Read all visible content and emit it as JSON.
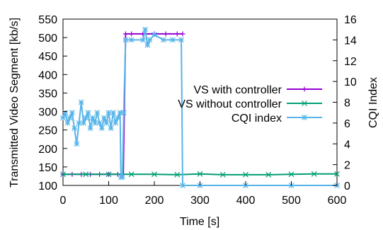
{
  "chart_data": {
    "type": "line",
    "xlabel": "Time [s]",
    "ylabel": "Transmitted Video Segment [kb/s]",
    "y2label": "CQI Index",
    "xlim": [
      0,
      600
    ],
    "ylim": [
      100,
      550
    ],
    "y2lim": [
      0,
      16
    ],
    "xticks": [
      "0",
      "100",
      "200",
      "300",
      "400",
      "500",
      "600"
    ],
    "yticks": [
      "100",
      "150",
      "200",
      "250",
      "300",
      "350",
      "400",
      "450",
      "500",
      "550"
    ],
    "y2ticks": [
      "0",
      "2",
      "4",
      "6",
      "8",
      "10",
      "12",
      "14",
      "16"
    ],
    "grid": false,
    "legend_position": "right",
    "series": [
      {
        "name": "VS with controller",
        "color": "#9400d3",
        "marker": "plus",
        "axis": "left",
        "points": [
          [
            0,
            130
          ],
          [
            20,
            130
          ],
          [
            40,
            130
          ],
          [
            60,
            130
          ],
          [
            80,
            130
          ],
          [
            100,
            130
          ],
          [
            120,
            130
          ],
          [
            127,
            130
          ],
          [
            132,
            130
          ],
          [
            137,
            510
          ],
          [
            150,
            510
          ],
          [
            175,
            510
          ],
          [
            200,
            510
          ],
          [
            225,
            510
          ],
          [
            250,
            510
          ],
          [
            262,
            510
          ]
        ]
      },
      {
        "name": "VS without controller",
        "color": "#009e73",
        "marker": "x",
        "axis": "left",
        "points": [
          [
            0,
            130
          ],
          [
            50,
            130
          ],
          [
            100,
            130
          ],
          [
            150,
            130
          ],
          [
            200,
            130
          ],
          [
            250,
            129
          ],
          [
            300,
            131
          ],
          [
            350,
            129
          ],
          [
            400,
            129
          ],
          [
            450,
            129
          ],
          [
            500,
            130
          ],
          [
            550,
            131
          ],
          [
            600,
            131
          ]
        ]
      },
      {
        "name": "CQI index",
        "color": "#56b4e9",
        "marker": "star",
        "axis": "right",
        "points": [
          [
            0,
            6.5
          ],
          [
            5,
            7
          ],
          [
            10,
            6
          ],
          [
            15,
            6.5
          ],
          [
            20,
            7
          ],
          [
            25,
            5.5
          ],
          [
            30,
            4
          ],
          [
            35,
            6
          ],
          [
            40,
            8
          ],
          [
            45,
            6
          ],
          [
            50,
            6.5
          ],
          [
            55,
            7
          ],
          [
            60,
            5.5
          ],
          [
            65,
            6.5
          ],
          [
            70,
            6
          ],
          [
            75,
            7
          ],
          [
            80,
            6
          ],
          [
            85,
            5.5
          ],
          [
            90,
            6.5
          ],
          [
            95,
            6
          ],
          [
            100,
            7
          ],
          [
            105,
            5.5
          ],
          [
            110,
            7
          ],
          [
            115,
            6
          ],
          [
            120,
            6.5
          ],
          [
            125,
            7
          ],
          [
            127,
            0.8
          ],
          [
            130,
            0.8
          ],
          [
            133,
            7
          ],
          [
            137,
            14
          ],
          [
            150,
            14
          ],
          [
            175,
            14
          ],
          [
            180,
            15
          ],
          [
            185,
            13.5
          ],
          [
            190,
            14
          ],
          [
            200,
            14.5
          ],
          [
            220,
            14
          ],
          [
            240,
            14
          ],
          [
            259,
            14
          ],
          [
            262,
            0
          ],
          [
            300,
            0
          ],
          [
            400,
            0
          ],
          [
            500,
            0
          ],
          [
            600,
            0
          ]
        ]
      }
    ]
  }
}
